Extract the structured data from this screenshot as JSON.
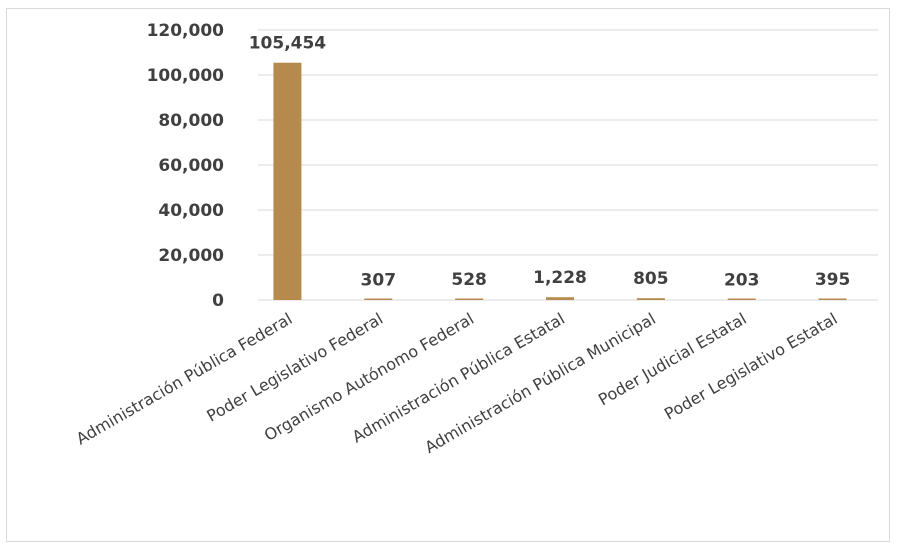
{
  "chart_data": {
    "type": "bar",
    "title": "",
    "xlabel": "",
    "ylabel": "",
    "categories": [
      "Administración Pública Federal",
      "Poder Legislativo Federal",
      "Organismo Autónomo Federal",
      "Administración Pública Estatal",
      "Administración Pública Municipal",
      "Poder Judicial Estatal",
      "Poder Legislativo Estatal"
    ],
    "values": [
      105454,
      307,
      528,
      1228,
      805,
      203,
      395
    ],
    "value_labels": [
      "105,454",
      "307",
      "528",
      "1,228",
      "805",
      "203",
      "395"
    ],
    "ylim": [
      0,
      120000
    ],
    "yticks": [
      0,
      20000,
      40000,
      60000,
      80000,
      100000,
      120000
    ],
    "ytick_labels": [
      "0",
      "20,000",
      "40,000",
      "60,000",
      "80,000",
      "100,000",
      "120,000"
    ],
    "grid": true,
    "legend": "none",
    "bar_color": "#b58a4c"
  }
}
